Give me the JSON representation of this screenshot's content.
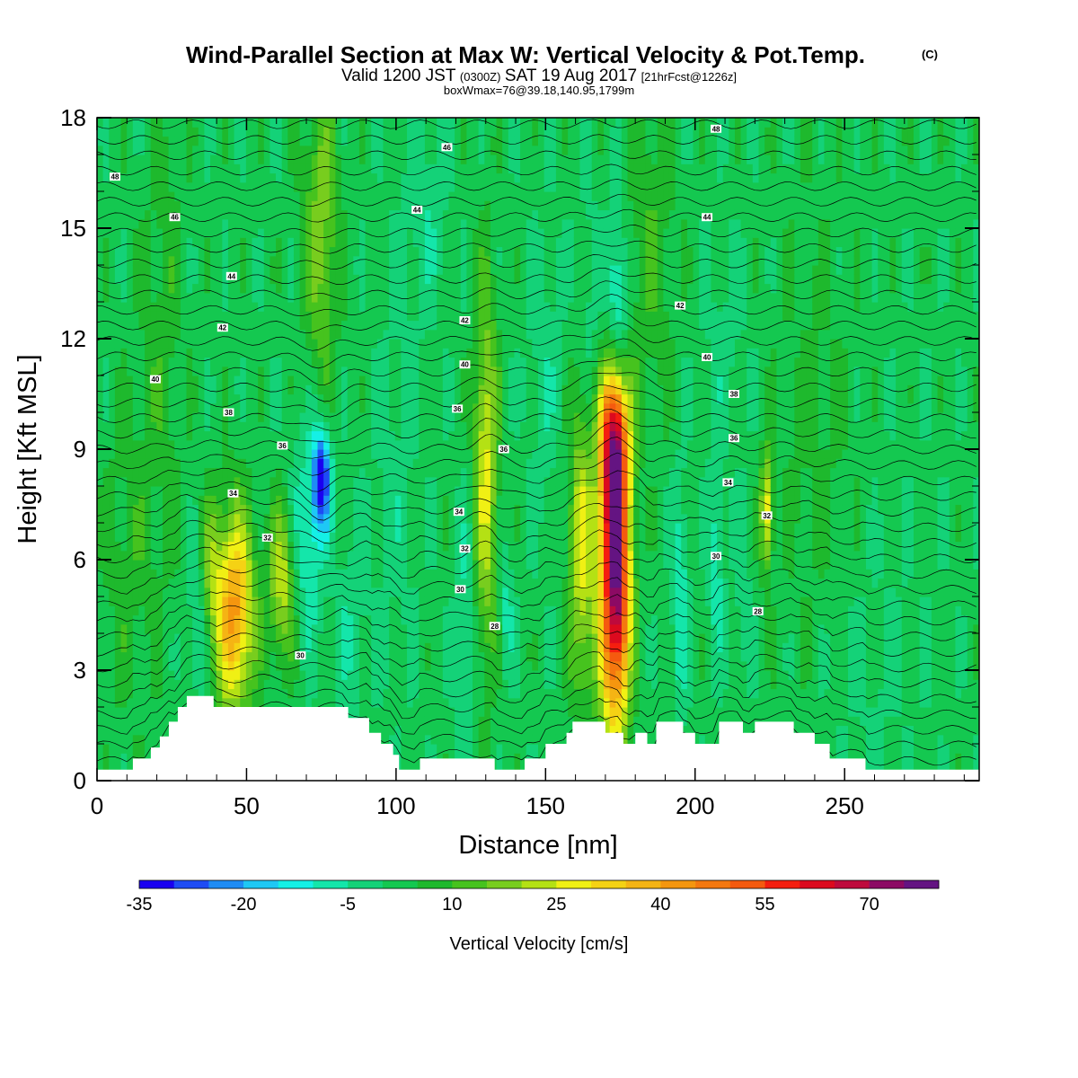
{
  "chart_data": {
    "type": "heatmap",
    "title": "Wind-Parallel Section at Max W: Vertical Velocity & Pot.Temp.",
    "copyright": "(C)",
    "subtitle_main": "Valid 1200 JST",
    "subtitle_utc": "(0300Z)",
    "subtitle_date": "SAT 19 Aug 2017",
    "subtitle_fcst": "[21hrFcst@1226z]",
    "subtitle2": "boxWmax=76@39.18,140.95,1799m",
    "xlabel": "Distance [nm]",
    "ylabel": "Height [Kft MSL]",
    "xlim": [
      0,
      295
    ],
    "ylim": [
      0,
      18
    ],
    "x_ticks": [
      "0",
      "50",
      "100",
      "150",
      "200",
      "250"
    ],
    "x_tick_values": [
      0,
      50,
      100,
      150,
      200,
      250
    ],
    "y_ticks": [
      "0",
      "3",
      "6",
      "9",
      "12",
      "15",
      "18"
    ],
    "y_tick_values": [
      0,
      3,
      6,
      9,
      12,
      15,
      18
    ],
    "colorbar": {
      "label": "Vertical Velocity [cm/s]",
      "tick_labels": [
        "-35",
        "-20",
        "-5",
        "10",
        "25",
        "40",
        "55",
        "70"
      ],
      "tick_values": [
        -35,
        -20,
        -5,
        10,
        25,
        40,
        55,
        70
      ],
      "min": -35,
      "max": 80,
      "step": 5,
      "colors": [
        "#1a00f0",
        "#1e4cf5",
        "#1e8cf5",
        "#1ec8f5",
        "#14f0e6",
        "#14e6aa",
        "#14d278",
        "#14c850",
        "#1eb92d",
        "#46c31e",
        "#78cd1e",
        "#b4e114",
        "#f0f014",
        "#f5d214",
        "#f5b414",
        "#f5960f",
        "#f5780f",
        "#f55a0f",
        "#f51e0f",
        "#dc0a1e",
        "#be0a3c",
        "#8c0a64",
        "#641482"
      ]
    },
    "shading_field": "Vertical Velocity (cm/s)",
    "contour_field": "Potential Temperature",
    "contour_labels": [
      {
        "text": "48",
        "x": 6,
        "z": 16.4
      },
      {
        "text": "46",
        "x": 26,
        "z": 15.3
      },
      {
        "text": "44",
        "x": 45,
        "z": 13.7
      },
      {
        "text": "42",
        "x": 42,
        "z": 12.3
      },
      {
        "text": "40",
        "x": 19.5,
        "z": 10.9
      },
      {
        "text": "38",
        "x": 44,
        "z": 10.0
      },
      {
        "text": "36",
        "x": 62,
        "z": 9.1
      },
      {
        "text": "34",
        "x": 45.5,
        "z": 7.8
      },
      {
        "text": "32",
        "x": 57,
        "z": 6.6
      },
      {
        "text": "30",
        "x": 68,
        "z": 3.4
      },
      {
        "text": "46",
        "x": 117,
        "z": 17.2
      },
      {
        "text": "44",
        "x": 107,
        "z": 15.5
      },
      {
        "text": "42",
        "x": 123,
        "z": 12.5
      },
      {
        "text": "40",
        "x": 123,
        "z": 11.3
      },
      {
        "text": "36",
        "x": 120.5,
        "z": 10.1
      },
      {
        "text": "36",
        "x": 136,
        "z": 9.0
      },
      {
        "text": "34",
        "x": 121,
        "z": 7.3
      },
      {
        "text": "32",
        "x": 123,
        "z": 6.3
      },
      {
        "text": "30",
        "x": 121.5,
        "z": 5.2
      },
      {
        "text": "28",
        "x": 133,
        "z": 4.2
      },
      {
        "text": "48",
        "x": 207,
        "z": 17.7
      },
      {
        "text": "44",
        "x": 204,
        "z": 15.3
      },
      {
        "text": "42",
        "x": 195,
        "z": 12.9
      },
      {
        "text": "40",
        "x": 204,
        "z": 11.5
      },
      {
        "text": "38",
        "x": 213,
        "z": 10.5
      },
      {
        "text": "36",
        "x": 213,
        "z": 9.3
      },
      {
        "text": "34",
        "x": 211,
        "z": 8.1
      },
      {
        "text": "32",
        "x": 224,
        "z": 7.2
      },
      {
        "text": "30",
        "x": 207,
        "z": 6.1
      },
      {
        "text": "28",
        "x": 221,
        "z": 4.6
      }
    ],
    "grid": false
  }
}
